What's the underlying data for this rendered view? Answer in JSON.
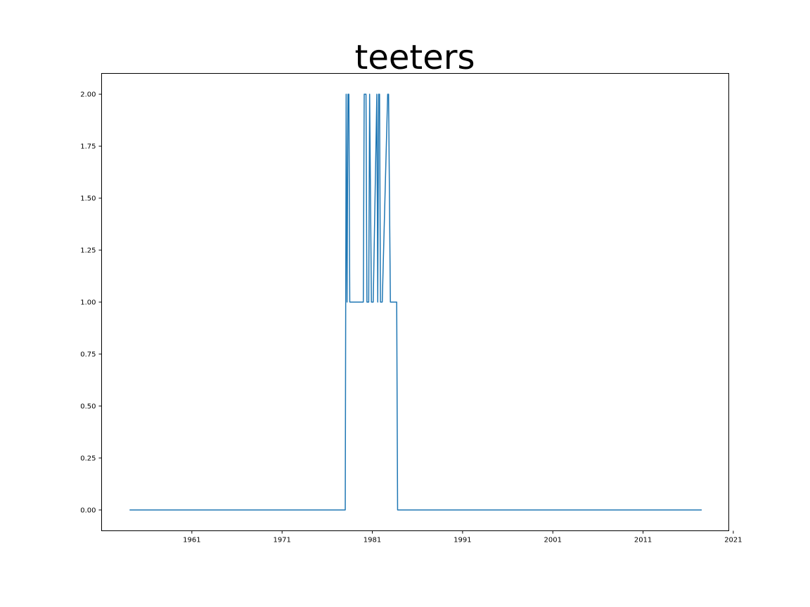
{
  "chart_data": {
    "type": "line",
    "title": "teeters",
    "xlabel": "",
    "ylabel": "",
    "xlim": [
      1951.0,
      2020.5
    ],
    "ylim": [
      -0.1,
      2.1
    ],
    "x_ticks": [
      1961,
      1971,
      1981,
      1991,
      2001,
      2011,
      2021
    ],
    "y_ticks": [
      0.0,
      0.25,
      0.5,
      0.75,
      1.0,
      1.25,
      1.5,
      1.75,
      2.0
    ],
    "y_tick_labels": [
      "0.00",
      "0.25",
      "0.50",
      "0.75",
      "1.00",
      "1.25",
      "1.50",
      "1.75",
      "2.00"
    ],
    "grid": false,
    "legend": "none",
    "series": [
      {
        "color": "#1f77b4",
        "x": [
          1954.1,
          1978.0,
          1978.1,
          1978.2,
          1978.3,
          1978.4,
          1978.5,
          1978.7,
          1980.0,
          1980.1,
          1980.3,
          1980.4,
          1980.6,
          1980.7,
          1980.9,
          1981.0,
          1981.1,
          1981.5,
          1981.6,
          1981.7,
          1981.8,
          1981.9,
          1982.0,
          1982.1,
          1982.7,
          1982.8,
          1983.0,
          1983.1,
          1983.7,
          1983.8,
          1983.9,
          2017.5
        ],
        "values": [
          0,
          0,
          2,
          1,
          2,
          2,
          1,
          1,
          1,
          2,
          2,
          1,
          1,
          2,
          1,
          1,
          1,
          2,
          1,
          2,
          2,
          1,
          1,
          1,
          2,
          2,
          1,
          1,
          1,
          0,
          0,
          0
        ]
      }
    ]
  }
}
